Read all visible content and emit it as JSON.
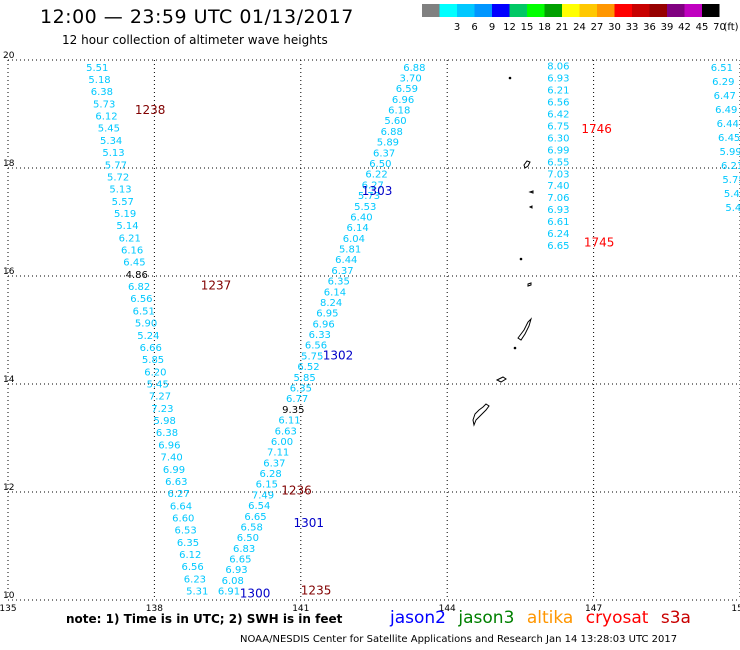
{
  "header": {
    "title": "12:00 — 23:59 UTC 01/13/2017",
    "subtitle": "12 hour collection of altimeter wave heights"
  },
  "color_scale": {
    "unit": "(ft)",
    "bins": [
      {
        "label": "",
        "color": "#808080"
      },
      {
        "label": "3",
        "color": "#00ffff"
      },
      {
        "label": "6",
        "color": "#00c8ff"
      },
      {
        "label": "9",
        "color": "#0096ff"
      },
      {
        "label": "12",
        "color": "#0000ff"
      },
      {
        "label": "15",
        "color": "#00c864"
      },
      {
        "label": "18",
        "color": "#00ff00"
      },
      {
        "label": "21",
        "color": "#00a000"
      },
      {
        "label": "24",
        "color": "#ffff00"
      },
      {
        "label": "27",
        "color": "#ffc800"
      },
      {
        "label": "30",
        "color": "#ff9600"
      },
      {
        "label": "33",
        "color": "#ff0000"
      },
      {
        "label": "36",
        "color": "#c80000"
      },
      {
        "label": "39",
        "color": "#960000"
      },
      {
        "label": "42",
        "color": "#800080"
      },
      {
        "label": "45",
        "color": "#c000c0"
      },
      {
        "label": "70",
        "color": "#000000"
      }
    ]
  },
  "footer": {
    "note": "note:  1) Time is in UTC;  2) SWH is in feet",
    "credit": "NOAA/NESDIS Center for Satellite Applications and Research    Jan 14 13:28:03 UTC 2017"
  },
  "satellites": [
    {
      "name": "jason2",
      "color": "#0000ff"
    },
    {
      "name": "jason3",
      "color": "#008000"
    },
    {
      "name": "altika",
      "color": "#ff9600"
    },
    {
      "name": "cryosat",
      "color": "#ff0000"
    },
    {
      "name": "s3a",
      "color": "#c80000"
    }
  ],
  "chart_data": {
    "type": "scatter",
    "title": "12:00 — 23:59 UTC 01/13/2017",
    "subtitle": "12 hour collection of altimeter wave heights",
    "xlim": [
      135,
      150
    ],
    "ylim": [
      10,
      20
    ],
    "x_ticks": [
      "135",
      "138",
      "141",
      "144",
      "147",
      "150"
    ],
    "y_ticks": [
      "10",
      "12",
      "14",
      "16",
      "18",
      "20"
    ],
    "grid": true,
    "colors": {
      "swh": "#00c8ff",
      "swh_high": "#000000",
      "time_blue": "#0000c8",
      "time_darkred": "#800000",
      "time_red": "#ff0000",
      "land": "#000000"
    },
    "tracks": [
      {
        "name": "track A",
        "lon_start": 136.6,
        "lat_start": 19.8,
        "lon_end": 138.65,
        "lat_end": 10.1,
        "values": [
          "5.51",
          "5.18",
          "6.38",
          "5.73",
          "6.12",
          "5.45",
          "5.34",
          "5.13",
          "5.77",
          "5.72",
          "5.13",
          "5.57",
          "5.19",
          "5.14",
          "6.21",
          "6.16",
          "6.45",
          "4.86",
          "6.82",
          "6.56",
          "6.51",
          "5.90",
          "5.24",
          "6.66",
          "5.85",
          "6.20",
          "5.45",
          "7.27",
          "7.23",
          "5.98",
          "6.38",
          "6.96",
          "7.40",
          "6.99",
          "6.63",
          "6.27",
          "6.64",
          "6.60",
          "6.53",
          "6.35",
          "6.12",
          "6.56",
          "6.23",
          "5.31"
        ],
        "high": [
          "4.86"
        ]
      },
      {
        "name": "track B",
        "lon_start": 143.1,
        "lat_start": 19.8,
        "lon_end": 139.3,
        "lat_end": 10.1,
        "values": [
          "6.88",
          "3.70",
          "6.59",
          "6.96",
          "6.18",
          "5.60",
          "6.88",
          "5.89",
          "6.37",
          "6.50",
          "6.22",
          "6.27",
          "5.73",
          "5.53",
          "6.40",
          "6.14",
          "6.04",
          "5.81",
          "6.44",
          "6.37",
          "6.35",
          "6.14",
          "8.24",
          "6.95",
          "6.96",
          "6.33",
          "6.56",
          "5.75",
          "6.52",
          "5.85",
          "6.35",
          "6.77",
          "9.35",
          "6.11",
          "6.63",
          "6.00",
          "7.11",
          "6.37",
          "6.28",
          "6.15",
          "7.49",
          "6.54",
          "6.65",
          "6.58",
          "6.50",
          "6.83",
          "6.65",
          "6.93",
          "6.08",
          "6.91"
        ],
        "high": [
          "9.35"
        ]
      },
      {
        "name": "track C",
        "lon_start": 146.05,
        "lat_start": 19.82,
        "lon_end": 146.05,
        "lat_end": 16.5,
        "values": [
          "8.06",
          "6.93",
          "6.21",
          "6.56",
          "6.42",
          "6.75",
          "6.30",
          "6.99",
          "6.55",
          "7.03",
          "7.40",
          "7.06",
          "6.93",
          "6.61",
          "6.24",
          "6.65"
        ],
        "high": []
      },
      {
        "name": "track D",
        "lon_start": 149.4,
        "lat_start": 19.8,
        "lon_end": 149.7,
        "lat_end": 17.2,
        "values": [
          "6.51",
          "6.29",
          "6.47",
          "6.49",
          "6.44",
          "6.45",
          "5.99",
          "6.21",
          "5.75",
          "5.45",
          "5.42"
        ],
        "high": []
      }
    ],
    "time_labels": [
      {
        "text": "1238",
        "lon": 137.6,
        "lat": 19.0,
        "color_key": "time_darkred"
      },
      {
        "text": "1237",
        "lon": 138.95,
        "lat": 15.75,
        "color_key": "time_darkred"
      },
      {
        "text": "1236",
        "lon": 140.6,
        "lat": 11.95,
        "color_key": "time_darkred"
      },
      {
        "text": "1235",
        "lon": 141.0,
        "lat": 10.1,
        "color_key": "time_darkred"
      },
      {
        "text": "1303",
        "lon": 142.25,
        "lat": 17.5,
        "color_key": "time_blue"
      },
      {
        "text": "1302",
        "lon": 141.45,
        "lat": 14.45,
        "color_key": "time_blue"
      },
      {
        "text": "1301",
        "lon": 140.85,
        "lat": 11.35,
        "color_key": "time_blue"
      },
      {
        "text": "1300",
        "lon": 139.75,
        "lat": 10.05,
        "color_key": "time_blue"
      },
      {
        "text": "1746",
        "lon": 146.75,
        "lat": 18.65,
        "color_key": "time_red"
      },
      {
        "text": "1745",
        "lon": 146.8,
        "lat": 16.55,
        "color_key": "time_red"
      }
    ],
    "land": [
      {
        "name": "Guam",
        "shape": "island"
      },
      {
        "name": "Rota",
        "shape": "islet"
      },
      {
        "name": "Saipan",
        "shape": "island"
      },
      {
        "name": "Anatahan",
        "shape": "islet"
      },
      {
        "name": "Pagan",
        "shape": "islet"
      },
      {
        "name": "Agrihan",
        "shape": "islet"
      },
      {
        "name": "Asuncion",
        "shape": "islet"
      }
    ]
  }
}
